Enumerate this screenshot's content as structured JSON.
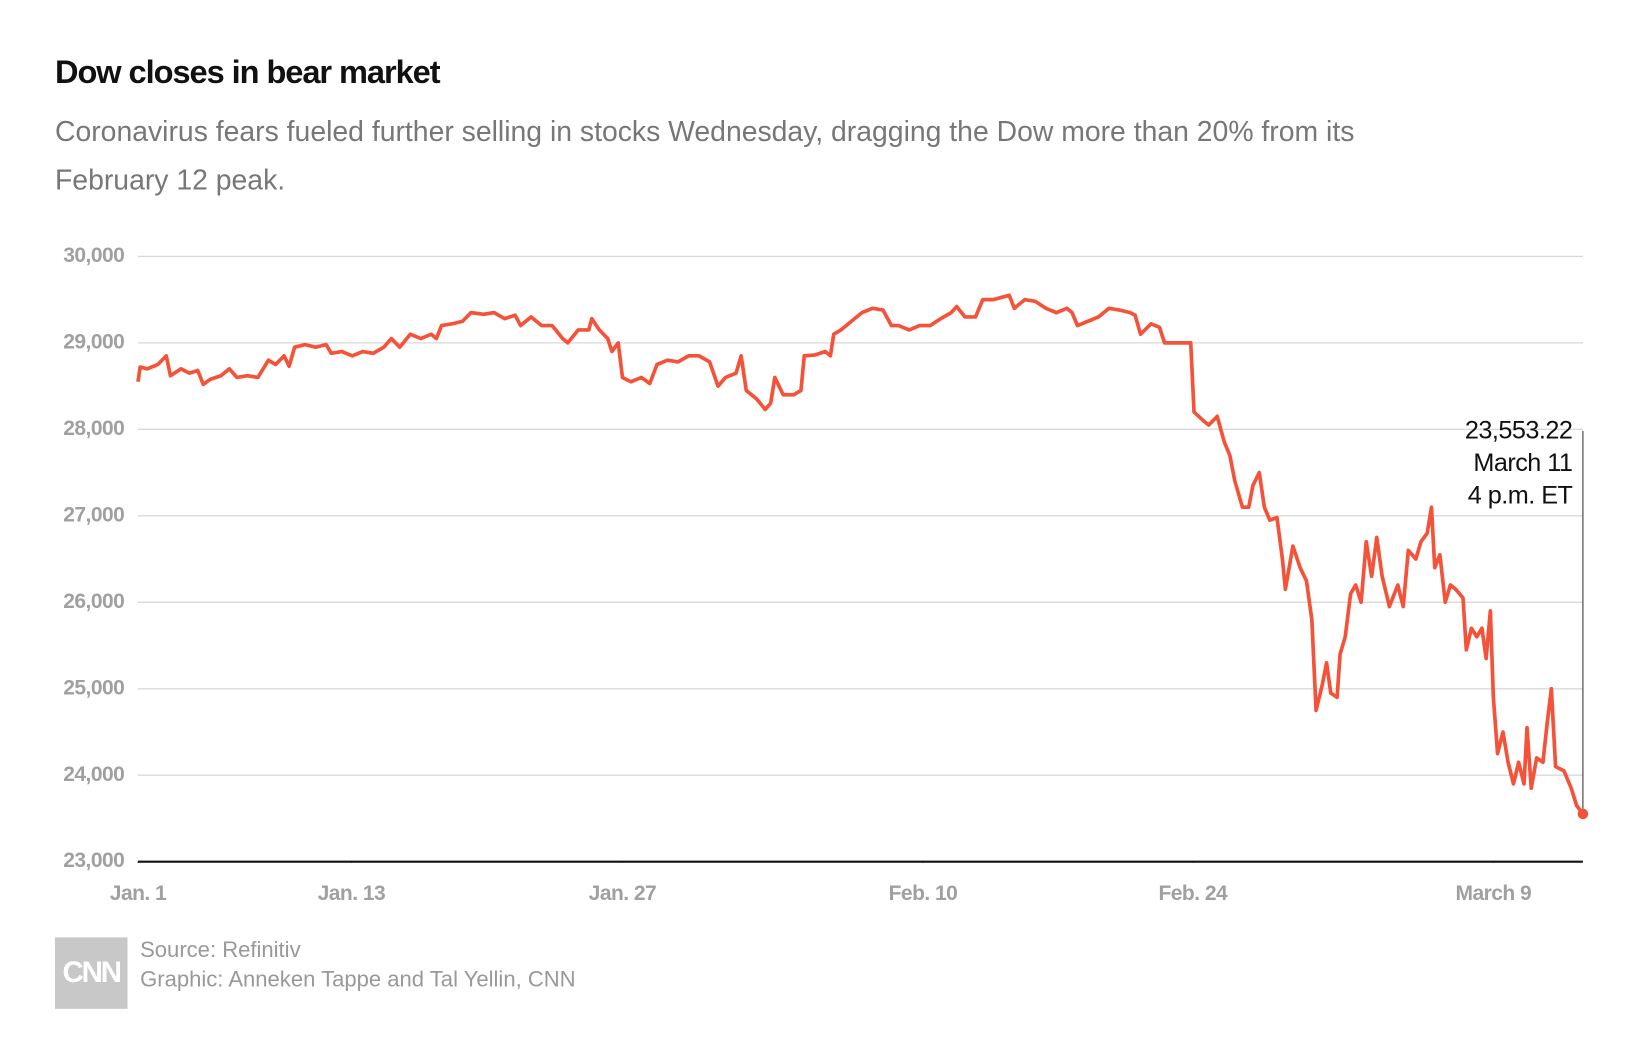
{
  "chart_data": {
    "type": "line",
    "title": "Dow closes in bear market",
    "subtitle": [
      "Coronavirus fears fueled further selling in stocks Wednesday, dragging the Dow more than 20% from its",
      "February 12 peak."
    ],
    "annotation": {
      "label": "23,553.22",
      "date": "March 11",
      "time": "4 p.m. ET"
    },
    "source": "Source: Refinitiv",
    "credit": "Graphic: Anneken Tappe and Tal Yellin, CNN",
    "logo": "CNN",
    "grid": true,
    "xlim": [
      0,
      48.08
    ],
    "xticks": [
      {
        "value": 0,
        "label": "Jan. 1"
      },
      {
        "value": 7.1,
        "label": "Jan. 13"
      },
      {
        "value": 16.12,
        "label": "Jan. 27"
      },
      {
        "value": 26.12,
        "label": "Feb. 10"
      },
      {
        "value": 35.1,
        "label": "Feb. 24"
      },
      {
        "value": 45.1,
        "label": "March 9"
      }
    ],
    "ylim": [
      23000,
      30000
    ],
    "yticks": [
      {
        "value": 23000,
        "label": "23,000"
      },
      {
        "value": 24000,
        "label": "24,000"
      },
      {
        "value": 25000,
        "label": "25,000"
      },
      {
        "value": 26000,
        "label": "26,000"
      },
      {
        "value": 27000,
        "label": "27,000"
      },
      {
        "value": 28000,
        "label": "28,000"
      },
      {
        "value": 29000,
        "label": "29,000"
      },
      {
        "value": 30000,
        "label": "30,000"
      }
    ],
    "series": [
      {
        "name": "Dow",
        "color": "#f4533a",
        "x": [
          0,
          0.07,
          0.31,
          0.66,
          0.94,
          1.08,
          1.43,
          1.71,
          1.99,
          2.17,
          2.41,
          2.76,
          3.04,
          3.29,
          3.64,
          3.99,
          4.34,
          4.58,
          4.86,
          5.03,
          5.21,
          5.56,
          5.91,
          6.26,
          6.43,
          6.78,
          7.13,
          7.48,
          7.83,
          8.18,
          8.43,
          8.71,
          9.06,
          9.41,
          9.76,
          9.93,
          10.1,
          10.45,
          10.8,
          11.08,
          11.5,
          11.85,
          12.2,
          12.55,
          12.73,
          13.08,
          13.43,
          13.78,
          14.13,
          14.3,
          14.65,
          15.0,
          15.1,
          15.35,
          15.63,
          15.77,
          15.98,
          16.12,
          16.4,
          16.75,
          17.03,
          17.27,
          17.62,
          17.97,
          18.32,
          18.67,
          19.02,
          19.3,
          19.55,
          19.9,
          20.07,
          20.24,
          20.59,
          20.87,
          21.05,
          21.19,
          21.47,
          21.82,
          22.06,
          22.17,
          22.52,
          22.87,
          23.04,
          23.15,
          23.39,
          23.74,
          24.09,
          24.44,
          24.79,
          25.07,
          25.31,
          25.66,
          26.01,
          26.36,
          26.71,
          27.06,
          27.24,
          27.52,
          27.87,
          28.11,
          28.46,
          28.99,
          29.16,
          29.51,
          29.86,
          30.21,
          30.56,
          30.91,
          31.08,
          31.26,
          31.61,
          31.96,
          32.31,
          32.66,
          33.01,
          33.18,
          33.36,
          33.71,
          33.99,
          34.16,
          34.58,
          35.03,
          35.14,
          35.45,
          35.63,
          35.91,
          36.15,
          36.33,
          36.5,
          36.75,
          36.96,
          37.1,
          37.31,
          37.48,
          37.66,
          37.9,
          38.08,
          38.18,
          38.43,
          38.67,
          38.88,
          39.06,
          39.2,
          39.41,
          39.55,
          39.69,
          39.9,
          40.0,
          40.17,
          40.35,
          40.52,
          40.7,
          40.87,
          41.05,
          41.22,
          41.4,
          41.64,
          41.92,
          42.1,
          42.27,
          42.52,
          42.69,
          42.9,
          43.04,
          43.15,
          43.32,
          43.5,
          43.67,
          43.85,
          44.09,
          44.2,
          44.37,
          44.55,
          44.72,
          44.86,
          45.0,
          45.1,
          45.24,
          45.42,
          45.59,
          45.77,
          45.94,
          46.12,
          46.22,
          46.36,
          46.54,
          46.75,
          46.89,
          47.03,
          47.17,
          47.45,
          47.69,
          47.87,
          48.08
        ],
        "values": [
          28550,
          28720,
          28700,
          28750,
          28850,
          28620,
          28700,
          28650,
          28680,
          28520,
          28580,
          28620,
          28700,
          28600,
          28620,
          28600,
          28800,
          28750,
          28850,
          28730,
          28950,
          28980,
          28950,
          28980,
          28880,
          28900,
          28850,
          28900,
          28880,
          28950,
          29050,
          28950,
          29100,
          29050,
          29100,
          29050,
          29200,
          29220,
          29250,
          29350,
          29330,
          29350,
          29280,
          29320,
          29200,
          29300,
          29200,
          29200,
          29050,
          29000,
          29150,
          29150,
          29280,
          29150,
          29050,
          28900,
          29000,
          28600,
          28550,
          28600,
          28530,
          28750,
          28800,
          28780,
          28850,
          28850,
          28780,
          28500,
          28600,
          28650,
          28850,
          28450,
          28350,
          28230,
          28300,
          28600,
          28400,
          28400,
          28450,
          28850,
          28860,
          28900,
          28850,
          29100,
          29150,
          29250,
          29350,
          29400,
          29380,
          29200,
          29200,
          29150,
          29200,
          29200,
          29280,
          29350,
          29420,
          29300,
          29300,
          29500,
          29500,
          29550,
          29400,
          29500,
          29480,
          29400,
          29350,
          29400,
          29350,
          29200,
          29250,
          29300,
          29400,
          29380,
          29350,
          29320,
          29100,
          29220,
          29180,
          29000,
          29000,
          29000,
          28200,
          28100,
          28050,
          28150,
          27850,
          27700,
          27400,
          27100,
          27100,
          27350,
          27500,
          27100,
          26950,
          26980,
          26500,
          26150,
          26650,
          26400,
          26250,
          25800,
          24750,
          25050,
          25300,
          24950,
          24900,
          25400,
          25600,
          26100,
          26200,
          26000,
          26700,
          26300,
          26750,
          26300,
          25950,
          26200,
          25950,
          26600,
          26500,
          26700,
          26800,
          27100,
          26400,
          26550,
          26000,
          26200,
          26150,
          26050,
          25450,
          25700,
          25600,
          25700,
          25350,
          25900,
          24900,
          24250,
          24500,
          24150,
          23900,
          24150,
          23900,
          24550,
          23850,
          24200,
          24150,
          24600,
          25000,
          24100,
          24050,
          23850,
          23650,
          23553.22
        ]
      }
    ]
  }
}
